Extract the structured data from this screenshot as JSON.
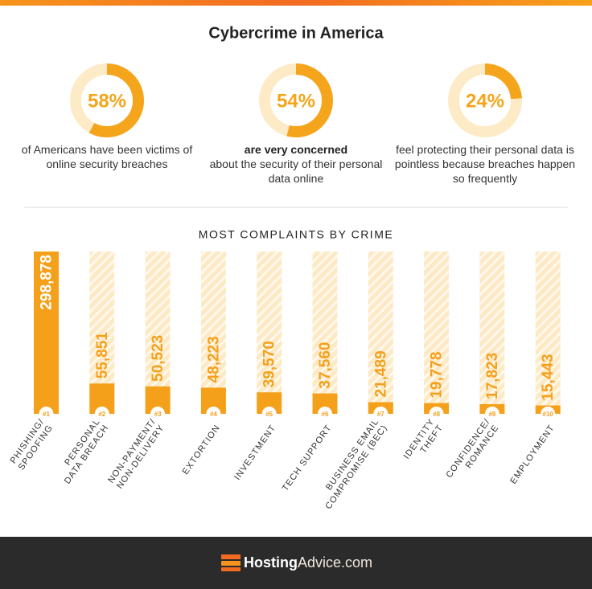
{
  "title": "Cybercrime in America",
  "chart_data": [
    {
      "type": "donut",
      "values": [
        58
      ],
      "value_labels": [
        "58%"
      ],
      "color": "#f5a51c",
      "track_color": "#fdebc8",
      "caption": "of Americans have been victims of online security breaches"
    },
    {
      "type": "donut",
      "values": [
        54
      ],
      "value_labels": [
        "54%"
      ],
      "color": "#f5a51c",
      "track_color": "#fdebc8",
      "caption_bold": "are very concerned",
      "caption": "about the security of their personal data online"
    },
    {
      "type": "donut",
      "values": [
        24
      ],
      "value_labels": [
        "24%"
      ],
      "color": "#f5a51c",
      "track_color": "#fdebc8",
      "caption": "feel protecting their personal data is pointless because breaches happen so frequently"
    },
    {
      "type": "bar",
      "title": "MOST COMPLAINTS BY CRIME",
      "color": "#f5a01a",
      "track_color": "#fde9c4",
      "categories": [
        [
          "PHISHING/",
          "SPOOFING"
        ],
        [
          "PERSONAL",
          "DATA BREACH"
        ],
        [
          "NON-PAYMENT/",
          "NON-DELIVERY"
        ],
        [
          "EXTORTION"
        ],
        [
          "INVESTMENT"
        ],
        [
          "TECH SUPPORT"
        ],
        [
          "BUSINESS EMAIL",
          "COMPROMISE (BEC)"
        ],
        [
          "IDENTITY",
          "THEFT"
        ],
        [
          "CONFIDENCE/",
          "ROMANCE"
        ],
        [
          "EMPLOYMENT"
        ]
      ],
      "ranks": [
        "#1",
        "#2",
        "#3",
        "#4",
        "#5",
        "#6",
        "#7",
        "#8",
        "#9",
        "#10"
      ],
      "values": [
        298878,
        55851,
        50523,
        48223,
        39570,
        37560,
        21489,
        19778,
        17823,
        15443
      ],
      "value_labels": [
        "298,878",
        "55,851",
        "50,523",
        "48,223",
        "39,570",
        "37,560",
        "21,489",
        "19,778",
        "17,823",
        "15,443"
      ]
    }
  ],
  "footer": {
    "brand_bold": "Hosting",
    "brand": "Advice.com"
  }
}
